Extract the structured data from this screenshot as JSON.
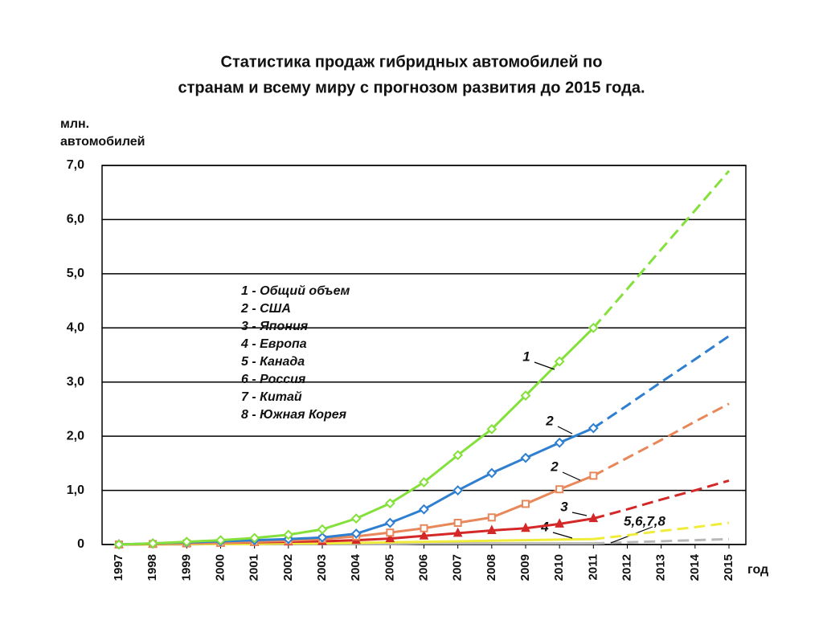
{
  "chart_data": {
    "type": "line",
    "title": [
      "Статистика продаж гибридных автомобилей по",
      "странам и всему миру с прогнозом развития до 2015 года."
    ],
    "y_label": [
      "млн.",
      "автомобилей"
    ],
    "x_label": "год",
    "categories": [
      "1997",
      "1998",
      "1999",
      "2000",
      "2001",
      "2002",
      "2003",
      "2004",
      "2005",
      "2006",
      "2007",
      "2008",
      "2009",
      "2010",
      "2011",
      "2012",
      "2013",
      "2014",
      "2015"
    ],
    "forecast_from": "2011",
    "ylim": [
      0,
      7
    ],
    "yticks": [
      0,
      {
        "value": 1,
        "label": "1,0"
      },
      {
        "value": 2,
        "label": "2,0"
      },
      {
        "value": 3,
        "label": "3,0"
      },
      {
        "value": 4,
        "label": "4,0"
      },
      {
        "value": 5,
        "label": "5,0"
      },
      {
        "value": 6,
        "label": "6,0"
      },
      {
        "value": 7,
        "label": "7,0"
      }
    ],
    "grid": true,
    "legend": [
      "1 - Общий объем",
      "2 - США",
      "3 - Япония",
      "4 - Европа",
      "5 - Канада",
      "6 - Россия",
      "7 - Китай",
      "8 - Южная Корея"
    ],
    "series": [
      {
        "label": "1",
        "color": "#84e03a",
        "marker": "diamond",
        "values": [
          0,
          0.02,
          0.05,
          0.08,
          0.12,
          0.18,
          0.28,
          0.48,
          0.76,
          1.15,
          1.65,
          2.13,
          2.75,
          3.38,
          4.0,
          4.72,
          5.45,
          6.17,
          6.9
        ]
      },
      {
        "label": "2",
        "color": "#2f7fd0",
        "marker": "diamond",
        "values": [
          0,
          0.02,
          0.04,
          0.06,
          0.08,
          0.1,
          0.13,
          0.2,
          0.4,
          0.65,
          1.0,
          1.32,
          1.6,
          1.88,
          2.15,
          2.57,
          3.0,
          3.42,
          3.85
        ]
      },
      {
        "label": "2",
        "color": "#e8875a",
        "marker": "square",
        "values": [
          0,
          0.01,
          0.02,
          0.03,
          0.05,
          0.07,
          0.1,
          0.15,
          0.22,
          0.3,
          0.4,
          0.5,
          0.75,
          1.02,
          1.27,
          1.6,
          1.93,
          2.27,
          2.6
        ]
      },
      {
        "label": "3",
        "color": "#d42828",
        "marker": "triangle",
        "values": [
          0,
          0.01,
          0.02,
          0.03,
          0.04,
          0.05,
          0.06,
          0.08,
          0.11,
          0.16,
          0.21,
          0.26,
          0.3,
          0.38,
          0.48,
          0.65,
          0.83,
          1.0,
          1.18
        ]
      },
      {
        "label": "4",
        "color": "#f0ec3c",
        "marker": "none",
        "values": [
          0,
          0,
          0.01,
          0.01,
          0.01,
          0.02,
          0.02,
          0.03,
          0.04,
          0.05,
          0.06,
          0.07,
          0.08,
          0.09,
          0.1,
          0.17,
          0.25,
          0.32,
          0.4
        ]
      },
      {
        "label": "5,6,7,8",
        "color": "#b8b8b8",
        "marker": "none",
        "values": [
          0,
          0,
          0,
          0.01,
          0.01,
          0.01,
          0.01,
          0.01,
          0.01,
          0.02,
          0.02,
          0.02,
          0.02,
          0.02,
          0.02,
          0.04,
          0.06,
          0.08,
          0.1
        ]
      }
    ]
  }
}
